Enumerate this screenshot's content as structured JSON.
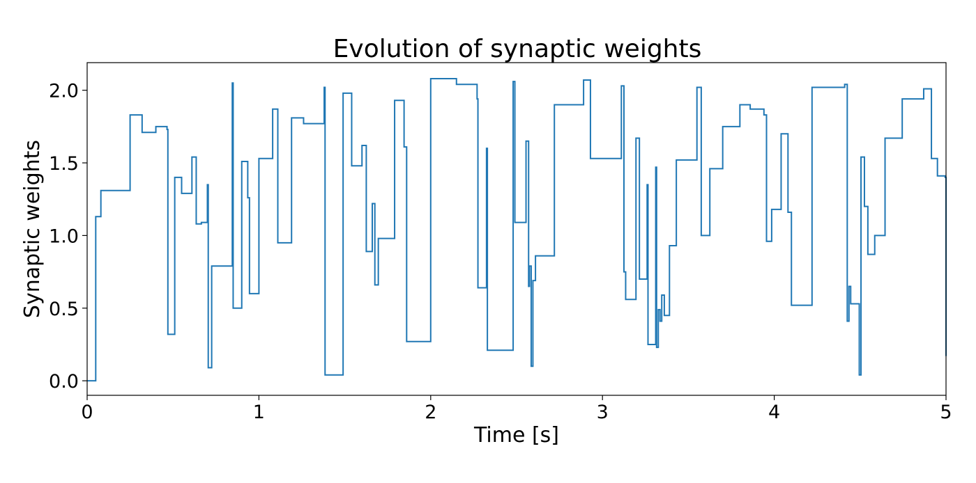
{
  "chart_data": {
    "type": "line",
    "title": "Evolution of synaptic weights",
    "xlabel": "Time [s]",
    "ylabel": "Synaptic weights",
    "xlim": [
      0,
      5
    ],
    "ylim": [
      -0.1,
      2.19
    ],
    "xticks": [
      0,
      1,
      2,
      3,
      4,
      5
    ],
    "xtick_labels": [
      "0",
      "1",
      "2",
      "3",
      "4",
      "5"
    ],
    "yticks": [
      0.0,
      0.5,
      1.0,
      1.5,
      2.0
    ],
    "ytick_labels": [
      "0.0",
      "0.5",
      "1.0",
      "1.5",
      "2.0"
    ],
    "grid": false,
    "line_color": "#1f77b4",
    "series": [
      {
        "step": "post",
        "x": [
          0,
          0.05,
          0.08,
          0.25,
          0.32,
          0.4,
          0.465,
          0.47,
          0.51,
          0.55,
          0.61,
          0.635,
          0.665,
          0.7,
          0.705,
          0.725,
          0.845,
          0.85,
          0.9,
          0.935,
          0.945,
          1.0,
          1.08,
          1.11,
          1.19,
          1.26,
          1.38,
          1.385,
          1.49,
          1.54,
          1.6,
          1.625,
          1.66,
          1.675,
          1.695,
          1.79,
          1.845,
          1.86,
          2.0,
          2.15,
          2.27,
          2.275,
          2.325,
          2.33,
          2.345,
          2.48,
          2.49,
          2.555,
          2.57,
          2.575,
          2.585,
          2.595,
          2.61,
          2.67,
          2.72,
          2.89,
          2.93,
          3.11,
          3.125,
          3.135,
          3.195,
          3.215,
          3.26,
          3.265,
          3.31,
          3.315,
          3.325,
          3.335,
          3.345,
          3.36,
          3.39,
          3.43,
          3.55,
          3.575,
          3.625,
          3.7,
          3.8,
          3.86,
          3.94,
          3.955,
          3.985,
          4.04,
          4.08,
          4.1,
          4.22,
          4.355,
          4.41,
          4.425,
          4.435,
          4.445,
          4.495,
          4.505,
          4.525,
          4.545,
          4.585,
          4.645,
          4.745,
          4.87,
          4.915,
          4.95,
          4.995,
          5.0
        ],
        "y": [
          0.0,
          1.13,
          1.31,
          1.83,
          1.71,
          1.75,
          1.73,
          0.32,
          1.4,
          1.29,
          1.54,
          1.08,
          1.09,
          1.35,
          0.09,
          0.79,
          2.05,
          0.5,
          1.51,
          1.26,
          0.6,
          1.53,
          1.87,
          0.95,
          1.81,
          1.77,
          2.02,
          0.04,
          1.98,
          1.48,
          1.62,
          0.89,
          1.22,
          0.66,
          0.98,
          1.93,
          1.61,
          0.27,
          2.08,
          2.04,
          1.94,
          0.64,
          1.6,
          0.21,
          0.21,
          2.06,
          1.09,
          1.65,
          0.65,
          0.79,
          0.1,
          0.69,
          0.86,
          0.86,
          1.9,
          2.07,
          1.53,
          2.03,
          0.75,
          0.56,
          1.67,
          0.7,
          1.35,
          0.25,
          1.47,
          0.23,
          0.49,
          0.41,
          0.59,
          0.45,
          0.93,
          1.52,
          2.02,
          1.0,
          1.46,
          1.75,
          1.9,
          1.87,
          1.83,
          0.96,
          1.18,
          1.7,
          1.16,
          0.52,
          2.02,
          2.02,
          2.04,
          0.41,
          0.65,
          0.53,
          0.04,
          1.54,
          1.2,
          0.87,
          1.0,
          1.67,
          1.94,
          2.01,
          1.53,
          1.41,
          1.4,
          0.17
        ]
      }
    ]
  }
}
